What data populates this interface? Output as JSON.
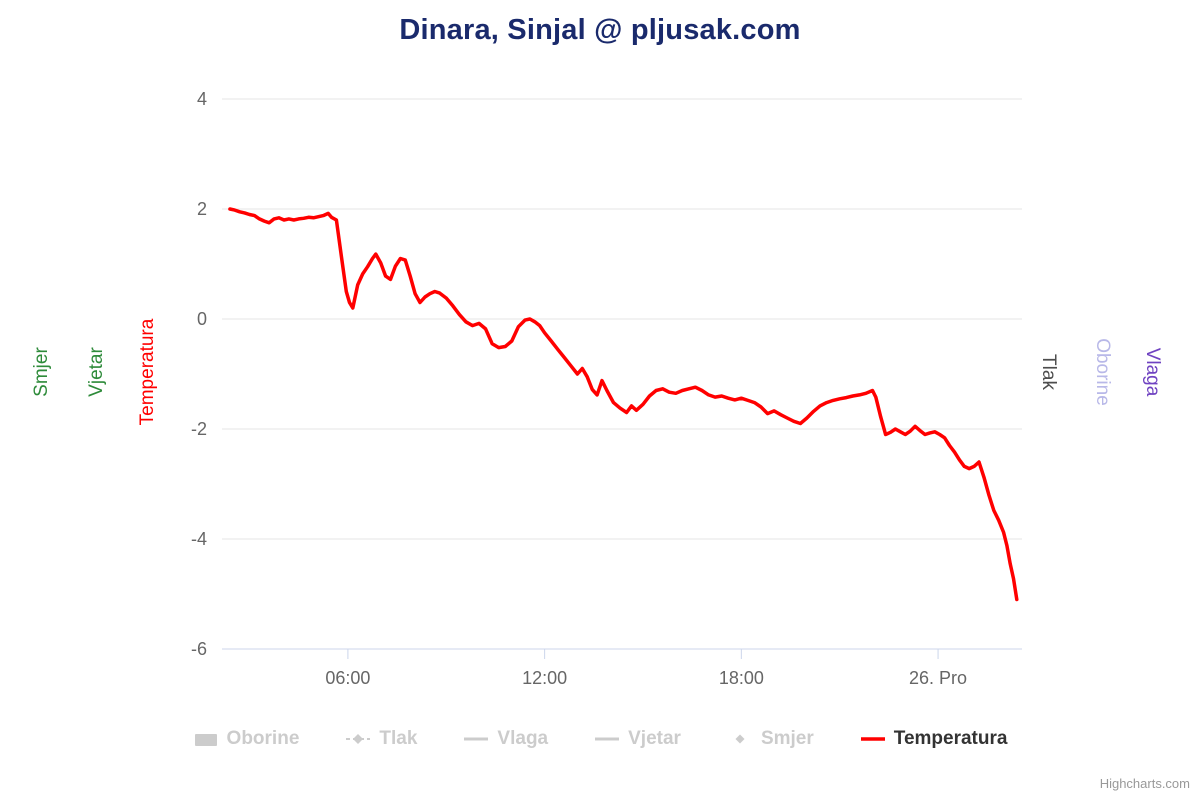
{
  "title": {
    "text": "Dinara, Sinjal @ pljusak.com",
    "color": "#1a2a6c"
  },
  "credits": {
    "label": "Highcharts.com",
    "color": "#999999"
  },
  "axes": {
    "vertical_titles": [
      {
        "id": "smjer",
        "label": "Smjer",
        "color": "#2e8b3a",
        "side": "left"
      },
      {
        "id": "vjetar",
        "label": "Vjetar",
        "color": "#2e8b3a",
        "side": "left"
      },
      {
        "id": "temperatura",
        "label": "Temperatura",
        "color": "#ff0000",
        "side": "left"
      },
      {
        "id": "tlak",
        "label": "Tlak",
        "color": "#4d4d4d",
        "side": "right"
      },
      {
        "id": "oborine",
        "label": "Oborine",
        "color": "#b8b8e8",
        "side": "right"
      },
      {
        "id": "vlaga",
        "label": "Vlaga",
        "color": "#6f42c1",
        "side": "right"
      }
    ]
  },
  "legend": {
    "items": [
      {
        "label": "Oborine",
        "marker": "rect",
        "color": "#cccccc",
        "label_color": "#cccccc",
        "enabled": false
      },
      {
        "label": "Tlak",
        "marker": "dash-diamond",
        "color": "#cccccc",
        "label_color": "#cccccc",
        "enabled": false
      },
      {
        "label": "Vlaga",
        "marker": "line",
        "color": "#cccccc",
        "label_color": "#cccccc",
        "enabled": false
      },
      {
        "label": "Vjetar",
        "marker": "line",
        "color": "#cccccc",
        "label_color": "#cccccc",
        "enabled": false
      },
      {
        "label": "Smjer",
        "marker": "diamond",
        "color": "#cccccc",
        "label_color": "#cccccc",
        "enabled": false
      },
      {
        "label": "Temperatura",
        "marker": "line",
        "color": "#ff0000",
        "label_color": "#333333",
        "enabled": true
      }
    ]
  },
  "chart_data": {
    "type": "line",
    "title": "Dinara, Sinjal @ pljusak.com",
    "xlabel": "",
    "ylabel": "Temperatura",
    "xlim": [
      2.16,
      26.56
    ],
    "ylim": [
      -6,
      4
    ],
    "yticks": [
      4,
      2,
      0,
      -2,
      -4,
      -6
    ],
    "xticks": [
      {
        "value": 6,
        "label": "06:00"
      },
      {
        "value": 12,
        "label": "12:00"
      },
      {
        "value": 18,
        "label": "18:00"
      },
      {
        "value": 24,
        "label": "26. Pro"
      }
    ],
    "grid": "horizontal",
    "grid_color": "#e6e6e6",
    "axis_line_color": "#ccd6eb",
    "axis_label_color": "#666666",
    "legend_position": "bottom-center",
    "series": [
      {
        "name": "Temperatura",
        "type": "line",
        "color": "#ff0000",
        "visible": true,
        "x_unit": "hour-of-day (24+ = 26. Pro)",
        "points": [
          [
            2.4,
            2.0
          ],
          [
            2.55,
            1.98
          ],
          [
            2.7,
            1.95
          ],
          [
            2.85,
            1.93
          ],
          [
            3.0,
            1.9
          ],
          [
            3.15,
            1.88
          ],
          [
            3.3,
            1.82
          ],
          [
            3.45,
            1.78
          ],
          [
            3.6,
            1.75
          ],
          [
            3.75,
            1.82
          ],
          [
            3.9,
            1.84
          ],
          [
            4.05,
            1.8
          ],
          [
            4.2,
            1.82
          ],
          [
            4.35,
            1.8
          ],
          [
            4.5,
            1.82
          ],
          [
            4.65,
            1.83
          ],
          [
            4.8,
            1.85
          ],
          [
            4.95,
            1.84
          ],
          [
            5.1,
            1.86
          ],
          [
            5.25,
            1.88
          ],
          [
            5.4,
            1.92
          ],
          [
            5.5,
            1.85
          ],
          [
            5.65,
            1.8
          ],
          [
            5.8,
            1.15
          ],
          [
            5.95,
            0.5
          ],
          [
            6.05,
            0.3
          ],
          [
            6.15,
            0.2
          ],
          [
            6.3,
            0.62
          ],
          [
            6.45,
            0.82
          ],
          [
            6.6,
            0.95
          ],
          [
            6.75,
            1.1
          ],
          [
            6.85,
            1.18
          ],
          [
            7.0,
            1.02
          ],
          [
            7.15,
            0.78
          ],
          [
            7.3,
            0.72
          ],
          [
            7.45,
            0.96
          ],
          [
            7.6,
            1.1
          ],
          [
            7.75,
            1.07
          ],
          [
            7.9,
            0.78
          ],
          [
            8.05,
            0.46
          ],
          [
            8.2,
            0.3
          ],
          [
            8.35,
            0.4
          ],
          [
            8.5,
            0.46
          ],
          [
            8.65,
            0.5
          ],
          [
            8.8,
            0.47
          ],
          [
            9.0,
            0.38
          ],
          [
            9.2,
            0.24
          ],
          [
            9.4,
            0.08
          ],
          [
            9.6,
            -0.05
          ],
          [
            9.8,
            -0.12
          ],
          [
            10.0,
            -0.08
          ],
          [
            10.2,
            -0.18
          ],
          [
            10.4,
            -0.45
          ],
          [
            10.6,
            -0.52
          ],
          [
            10.8,
            -0.5
          ],
          [
            11.0,
            -0.4
          ],
          [
            11.2,
            -0.14
          ],
          [
            11.4,
            -0.02
          ],
          [
            11.55,
            0.0
          ],
          [
            11.7,
            -0.05
          ],
          [
            11.85,
            -0.12
          ],
          [
            12.0,
            -0.25
          ],
          [
            12.2,
            -0.4
          ],
          [
            12.4,
            -0.55
          ],
          [
            12.6,
            -0.7
          ],
          [
            12.8,
            -0.85
          ],
          [
            13.0,
            -1.0
          ],
          [
            13.15,
            -0.9
          ],
          [
            13.3,
            -1.05
          ],
          [
            13.45,
            -1.28
          ],
          [
            13.6,
            -1.38
          ],
          [
            13.75,
            -1.12
          ],
          [
            13.9,
            -1.3
          ],
          [
            14.1,
            -1.52
          ],
          [
            14.3,
            -1.62
          ],
          [
            14.5,
            -1.7
          ],
          [
            14.65,
            -1.58
          ],
          [
            14.8,
            -1.66
          ],
          [
            15.0,
            -1.55
          ],
          [
            15.2,
            -1.4
          ],
          [
            15.4,
            -1.3
          ],
          [
            15.6,
            -1.27
          ],
          [
            15.8,
            -1.33
          ],
          [
            16.0,
            -1.35
          ],
          [
            16.2,
            -1.3
          ],
          [
            16.4,
            -1.27
          ],
          [
            16.6,
            -1.24
          ],
          [
            16.8,
            -1.3
          ],
          [
            17.0,
            -1.38
          ],
          [
            17.2,
            -1.42
          ],
          [
            17.4,
            -1.4
          ],
          [
            17.6,
            -1.44
          ],
          [
            17.8,
            -1.47
          ],
          [
            18.0,
            -1.44
          ],
          [
            18.2,
            -1.48
          ],
          [
            18.4,
            -1.52
          ],
          [
            18.6,
            -1.6
          ],
          [
            18.8,
            -1.72
          ],
          [
            19.0,
            -1.67
          ],
          [
            19.2,
            -1.74
          ],
          [
            19.4,
            -1.8
          ],
          [
            19.6,
            -1.86
          ],
          [
            19.8,
            -1.9
          ],
          [
            20.0,
            -1.8
          ],
          [
            20.2,
            -1.68
          ],
          [
            20.4,
            -1.58
          ],
          [
            20.6,
            -1.52
          ],
          [
            20.8,
            -1.48
          ],
          [
            21.0,
            -1.45
          ],
          [
            21.2,
            -1.43
          ],
          [
            21.4,
            -1.4
          ],
          [
            21.6,
            -1.38
          ],
          [
            21.8,
            -1.35
          ],
          [
            22.0,
            -1.3
          ],
          [
            22.1,
            -1.42
          ],
          [
            22.25,
            -1.78
          ],
          [
            22.4,
            -2.1
          ],
          [
            22.55,
            -2.06
          ],
          [
            22.7,
            -2.0
          ],
          [
            22.85,
            -2.05
          ],
          [
            23.0,
            -2.1
          ],
          [
            23.15,
            -2.04
          ],
          [
            23.3,
            -1.95
          ],
          [
            23.45,
            -2.03
          ],
          [
            23.6,
            -2.1
          ],
          [
            23.75,
            -2.07
          ],
          [
            23.9,
            -2.05
          ],
          [
            24.05,
            -2.1
          ],
          [
            24.2,
            -2.16
          ],
          [
            24.35,
            -2.3
          ],
          [
            24.5,
            -2.42
          ],
          [
            24.65,
            -2.56
          ],
          [
            24.8,
            -2.68
          ],
          [
            24.95,
            -2.72
          ],
          [
            25.1,
            -2.68
          ],
          [
            25.25,
            -2.6
          ],
          [
            25.4,
            -2.88
          ],
          [
            25.55,
            -3.2
          ],
          [
            25.7,
            -3.48
          ],
          [
            25.85,
            -3.66
          ],
          [
            26.0,
            -3.88
          ],
          [
            26.1,
            -4.12
          ],
          [
            26.2,
            -4.45
          ],
          [
            26.3,
            -4.72
          ],
          [
            26.4,
            -5.1
          ]
        ]
      },
      {
        "name": "Oborine",
        "type": "column",
        "visible": false
      },
      {
        "name": "Tlak",
        "type": "line",
        "visible": false
      },
      {
        "name": "Vlaga",
        "type": "line",
        "visible": false
      },
      {
        "name": "Vjetar",
        "type": "line",
        "visible": false
      },
      {
        "name": "Smjer",
        "type": "scatter",
        "visible": false
      }
    ]
  }
}
